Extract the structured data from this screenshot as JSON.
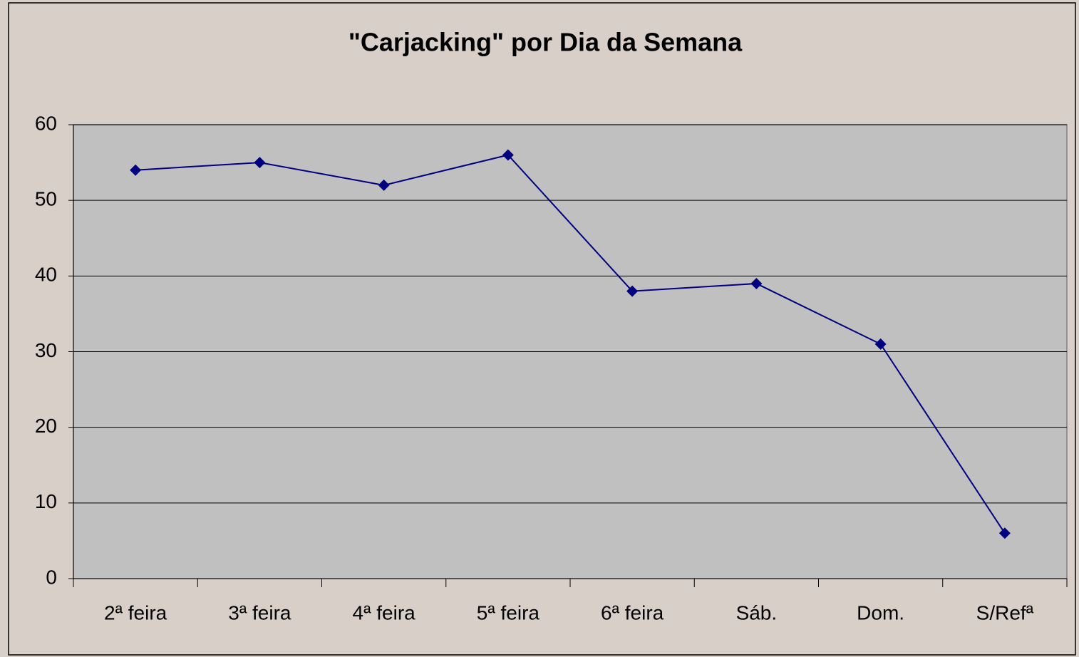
{
  "chart_data": {
    "type": "line",
    "title": "\"Carjacking\" por Dia da Semana",
    "categories": [
      "2ª feira",
      "3ª feira",
      "4ª feira",
      "5ª feira",
      "6ª feira",
      "Sáb.",
      "Dom.",
      "S/Refª"
    ],
    "series": [
      {
        "name": "Carjacking",
        "color": "#000080",
        "values": [
          54,
          55,
          52,
          56,
          38,
          39,
          31,
          6
        ]
      }
    ],
    "ylim": [
      0,
      60
    ],
    "yticks": [
      0,
      10,
      20,
      30,
      40,
      50,
      60
    ],
    "grid": true
  }
}
